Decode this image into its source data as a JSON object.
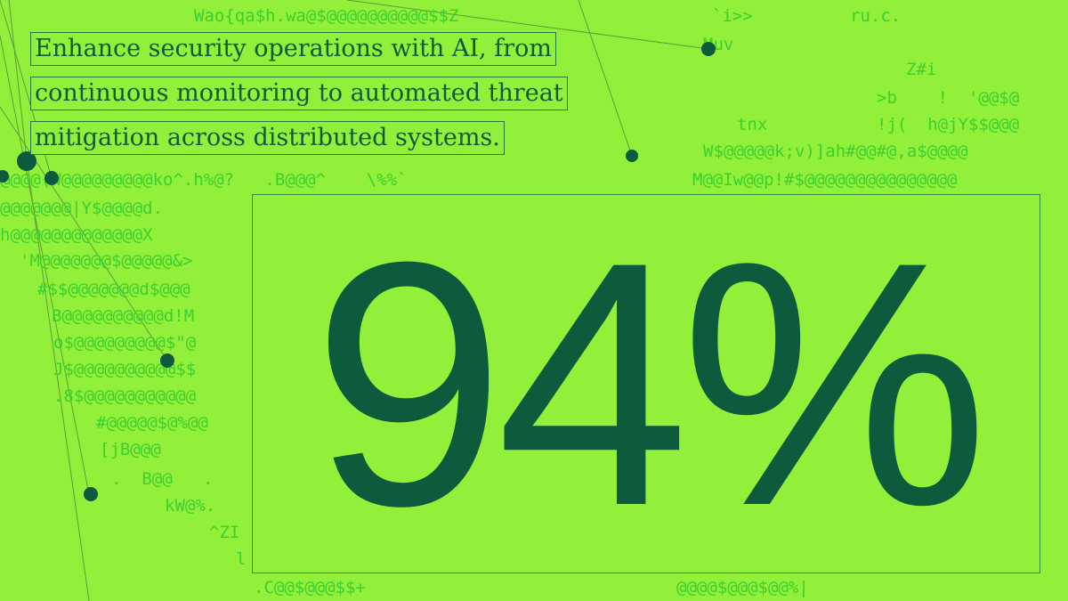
{
  "headline": {
    "lines": [
      "Enhance security operations with AI, from",
      "continuous monitoring to automated threat",
      "mitigation across distributed systems."
    ]
  },
  "stat": "94%",
  "background_text": [
    "Wao{qa$h.wa@$@@@@@@@@@@$$Z",
    "`i>>",
    "ru.c.",
    "Muv",
    "Z#i",
    ">b    !  '@@$@",
    "tnx",
    "!j(  h@jY$$@@@",
    "W$@@@@@k;v)]ah#@@#@,a$@@@@",
    "@@@@(W@@@@@@@@@ko^.h%@?   .B@@@^    \\%%`",
    "M@@Iw@@p!#$@@@@@@@@@@@@@@@",
    "@@@@@@@|Y$@@@@d.",
    "h@@@@@@@@@@@@@X",
    "'M@@@@@@@$@@@@@&>",
    "#$$@@@@@@@d$@@@",
    "B@@@@@@@@@@d!M",
    "o$@@@@@@@@@$\"@",
    "J$@@@@@@@@@@$$",
    ".8$@@@@@@@@@@@",
    "#@@@@@$@%@@",
    "[jB@@@",
    ".  B@@   .",
    "kW@%.",
    "^ZI",
    "l",
    ".C@@$@@@$$+",
    "@@@@$@@@$@@%|"
  ]
}
